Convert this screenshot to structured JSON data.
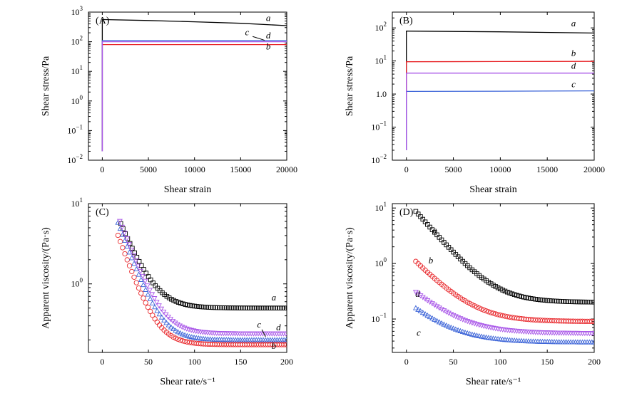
{
  "chart_data": [
    {
      "panel": "(A)",
      "type": "line",
      "yscale": "log",
      "xlabel": "Shear strain",
      "ylabel": "Shear stress/Pa",
      "xlim": [
        -1500,
        20000
      ],
      "ylim": [
        0.01,
        1000
      ],
      "xticks": [
        0,
        5000,
        10000,
        15000,
        20000
      ],
      "yticks": [
        0.01,
        0.1,
        1,
        10,
        100,
        1000
      ],
      "ytick_labels": [
        [
          "10",
          "−2"
        ],
        [
          "10",
          "−1"
        ],
        [
          "10",
          "0"
        ],
        [
          "10",
          "1"
        ],
        [
          "10",
          "2"
        ],
        [
          "10",
          "3"
        ]
      ],
      "series": [
        {
          "name": "a",
          "color": "#000000",
          "x": [
            0,
            0,
            200,
            5000,
            10000,
            15000,
            20000
          ],
          "y": [
            0.02,
            560,
            560,
            520,
            470,
            420,
            350
          ]
        },
        {
          "name": "b",
          "color": "#e8262a",
          "x": [
            0,
            0,
            200,
            10000,
            20000
          ],
          "y": [
            0.02,
            80,
            80,
            80,
            80
          ]
        },
        {
          "name": "c",
          "color": "#3c64d8",
          "x": [
            0,
            0,
            200,
            10000,
            20000
          ],
          "y": [
            0.02,
            110,
            110,
            110,
            110
          ]
        },
        {
          "name": "d",
          "color": "#a855e8",
          "x": [
            0,
            0,
            200,
            10000,
            20000
          ],
          "y": [
            0.02,
            100,
            100,
            100,
            100
          ]
        }
      ],
      "labels": [
        {
          "text": "a",
          "x": 18000,
          "y": 500
        },
        {
          "text": "c",
          "x": 15700,
          "y": 165
        },
        {
          "text": "d",
          "x": 18000,
          "y": 130
        },
        {
          "text": "b",
          "x": 18000,
          "y": 55
        }
      ]
    },
    {
      "panel": "(B)",
      "type": "line",
      "yscale": "log",
      "xlabel": "Shear strain",
      "ylabel": "Shear stress/Pa",
      "xlim": [
        -1500,
        20000
      ],
      "ylim": [
        0.01,
        300
      ],
      "xticks": [
        0,
        5000,
        10000,
        15000,
        20000
      ],
      "yticks": [
        0.01,
        0.1,
        1,
        10,
        100
      ],
      "ytick_labels": [
        [
          "10",
          "−2"
        ],
        [
          "10",
          "−1"
        ],
        [
          "1.0",
          ""
        ],
        [
          "10",
          "1"
        ],
        [
          "10",
          "2"
        ]
      ],
      "series": [
        {
          "name": "a",
          "color": "#000000",
          "x": [
            0,
            0,
            200,
            10000,
            20000
          ],
          "y": [
            0.02,
            80,
            80,
            76,
            70
          ]
        },
        {
          "name": "b",
          "color": "#e8262a",
          "x": [
            0,
            0,
            200,
            10000,
            20000
          ],
          "y": [
            0.02,
            9.5,
            9.5,
            9.6,
            9.7
          ]
        },
        {
          "name": "c",
          "color": "#3c64d8",
          "x": [
            0,
            0,
            200,
            10000,
            20000
          ],
          "y": [
            0.02,
            1.2,
            1.2,
            1.22,
            1.25
          ]
        },
        {
          "name": "d",
          "color": "#a855e8",
          "x": [
            0,
            0,
            200,
            10000,
            20000
          ],
          "y": [
            0.02,
            4.3,
            4.3,
            4.3,
            4.3
          ]
        }
      ],
      "labels": [
        {
          "text": "a",
          "x": 17800,
          "y": 110
        },
        {
          "text": "b",
          "x": 17800,
          "y": 14
        },
        {
          "text": "d",
          "x": 17800,
          "y": 5.8
        },
        {
          "text": "c",
          "x": 17800,
          "y": 1.6
        }
      ]
    },
    {
      "panel": "(C)",
      "type": "scatter",
      "yscale": "log",
      "xlabel": "Shear rate/s⁻¹",
      "ylabel": "Apparent viscosity/(Pa·s)",
      "xlim": [
        -15,
        200
      ],
      "ylim": [
        0.14,
        10
      ],
      "xticks": [
        0,
        50,
        100,
        150,
        200
      ],
      "yticks": [
        1,
        10
      ],
      "ytick_labels": [
        [
          "10",
          "0"
        ],
        [
          "10",
          "1"
        ]
      ],
      "series": [
        {
          "name": "a",
          "color": "#000000",
          "marker": "square",
          "x0": 20,
          "vinf": 0.5,
          "A": 5.15,
          "k": 0.065
        },
        {
          "name": "b",
          "color": "#e8262a",
          "marker": "circle",
          "x0": 17,
          "vinf": 0.175,
          "A": 3.85,
          "k": 0.075
        },
        {
          "name": "c",
          "color": "#3c64d8",
          "marker": "triangle-up",
          "x0": 17,
          "vinf": 0.2,
          "A": 5.6,
          "k": 0.072
        },
        {
          "name": "d",
          "color": "#a855e8",
          "marker": "triangle-down",
          "x0": 19,
          "vinf": 0.24,
          "A": 5.8,
          "k": 0.07
        }
      ],
      "labels": [
        {
          "text": "a",
          "x": 186,
          "y": 0.62
        },
        {
          "text": "c",
          "x": 170,
          "y": 0.285
        },
        {
          "text": "d",
          "x": 191,
          "y": 0.265
        },
        {
          "text": "b",
          "x": 186,
          "y": 0.155
        }
      ]
    },
    {
      "panel": "(D)",
      "type": "scatter",
      "yscale": "log",
      "xlabel": "Shear rate/s⁻¹",
      "ylabel": "Apparent viscosity/(Pa·s)",
      "xlim": [
        -15,
        200
      ],
      "ylim": [
        0.025,
        12
      ],
      "xticks": [
        0,
        50,
        100,
        150,
        200
      ],
      "yticks": [
        0.1,
        1,
        10
      ],
      "ytick_labels": [
        [
          "10",
          "−1"
        ],
        [
          "10",
          "0"
        ],
        [
          "10",
          "1"
        ]
      ],
      "series": [
        {
          "name": "a",
          "color": "#000000",
          "marker": "square",
          "x0": 10,
          "vinf": 0.2,
          "A": 8.5,
          "k": 0.045
        },
        {
          "name": "b",
          "color": "#e8262a",
          "marker": "circle",
          "x0": 10,
          "vinf": 0.09,
          "A": 1.0,
          "k": 0.04
        },
        {
          "name": "c",
          "color": "#3c64d8",
          "marker": "triangle-up",
          "x0": 10,
          "vinf": 0.038,
          "A": 0.12,
          "k": 0.035
        },
        {
          "name": "d",
          "color": "#a855e8",
          "marker": "triangle-down",
          "x0": 10,
          "vinf": 0.055,
          "A": 0.25,
          "k": 0.035
        }
      ],
      "labels": [
        {
          "text": "a",
          "x": 30,
          "y": 3.5
        },
        {
          "text": "b",
          "x": 26,
          "y": 1.0
        },
        {
          "text": "d",
          "x": 12,
          "y": 0.25
        },
        {
          "text": "c",
          "x": 13,
          "y": 0.05
        }
      ]
    }
  ]
}
